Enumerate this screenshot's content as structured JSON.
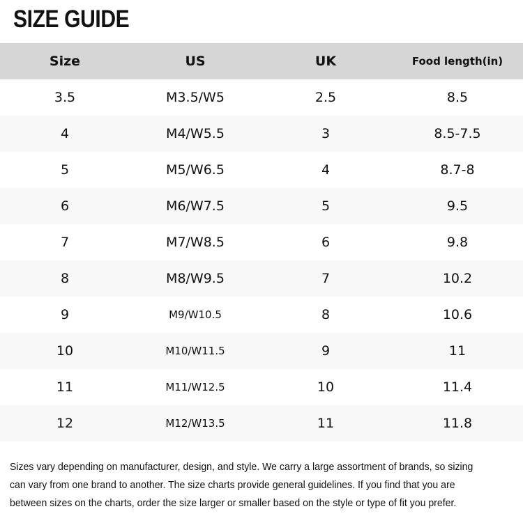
{
  "title": "SIZE GUIDE",
  "table": {
    "headers": [
      "Size",
      "US",
      "UK",
      "Food length(in)"
    ],
    "rows": [
      [
        "3.5",
        "M3.5/W5",
        "2.5",
        "8.5"
      ],
      [
        "4",
        "M4/W5.5",
        "3",
        "8.5-7.5"
      ],
      [
        "5",
        "M5/W6.5",
        "4",
        "8.7-8"
      ],
      [
        "6",
        "M6/W7.5",
        "5",
        "9.5"
      ],
      [
        "7",
        "M7/W8.5",
        "6",
        "9.8"
      ],
      [
        "8",
        "M8/W9.5",
        "7",
        "10.2"
      ],
      [
        "9",
        "M9/W10.5",
        "8",
        "10.6"
      ],
      [
        "10",
        "M10/W11.5",
        "9",
        "11"
      ],
      [
        "11",
        "M11/W12.5",
        "10",
        "11.4"
      ],
      [
        "12",
        "M12/W13.5",
        "11",
        "11.8"
      ]
    ]
  },
  "note": {
    "lines": [
      "Sizes vary depending on manufacturer, design, and style. We carry a large assortment of brands, so sizing",
      "can vary from one brand to another. The size charts provide general guidelines. If you find that you are",
      "between sizes on the charts, order the size larger or smaller based on the style or type of fit you prefer."
    ]
  },
  "colors": {
    "header_bg": "#d6d6d6",
    "alt_row_bg": "#f8f8f8"
  }
}
